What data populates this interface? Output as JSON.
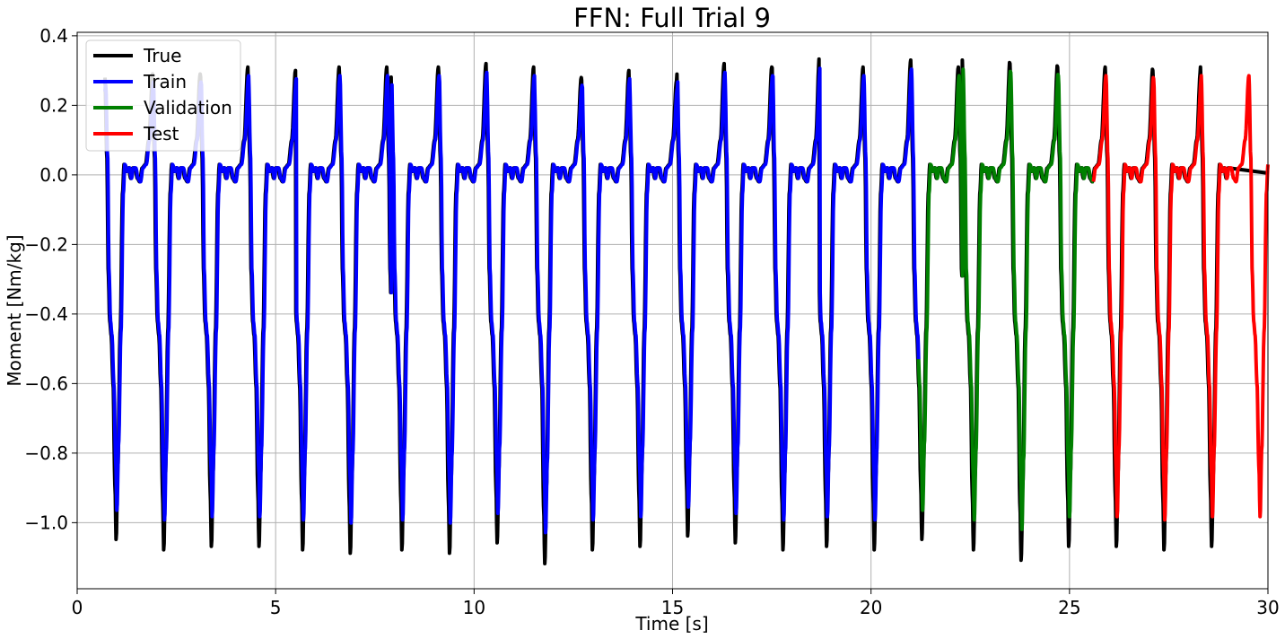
{
  "chart_data": {
    "type": "line",
    "title": "FFN: Full Trial 9",
    "xlabel": "Time [s]",
    "ylabel": "Moment [Nm/kg]",
    "xlim": [
      0,
      30
    ],
    "ylim": [
      -1.19,
      0.41
    ],
    "xticks": [
      0,
      5,
      10,
      15,
      20,
      25,
      30
    ],
    "yticks": [
      0.4,
      0.2,
      0.0,
      -0.2,
      -0.4,
      -0.6,
      -0.8,
      -1.0
    ],
    "ytick_labels": [
      "0.4",
      "0.2",
      "0.0",
      "−0.2",
      "−0.4",
      "−0.6",
      "−0.8",
      "−1.0"
    ],
    "grid": true,
    "legend_position": "upper-left",
    "colors": {
      "True": "#000000",
      "Train": "#0000ff",
      "Validation": "#008000",
      "Test": "#ff0000"
    },
    "legend": [
      "True",
      "Train",
      "Validation",
      "Test"
    ],
    "stride_period_s": 1.2,
    "series": [
      {
        "name": "True",
        "peaks": [
          {
            "t": 0.7,
            "max": 0.28,
            "min": -1.05
          },
          {
            "t": 1.9,
            "max": 0.29,
            "min": -1.08
          },
          {
            "t": 3.1,
            "max": 0.31,
            "min": -1.07
          },
          {
            "t": 4.3,
            "max": 0.3,
            "min": -1.07
          },
          {
            "t": 5.4,
            "max": 0.31,
            "min": -1.08
          },
          {
            "t": 6.6,
            "max": 0.31,
            "min": -1.09
          },
          {
            "t": 7.9,
            "max": 0.31,
            "min": -1.08
          },
          {
            "t": 9.1,
            "max": 0.32,
            "min": -1.09
          },
          {
            "t": 10.3,
            "max": 0.31,
            "min": -1.06
          },
          {
            "t": 11.5,
            "max": 0.28,
            "min": -1.12
          },
          {
            "t": 12.7,
            "max": 0.3,
            "min": -1.08
          },
          {
            "t": 13.9,
            "max": 0.27,
            "min": -1.07
          },
          {
            "t": 15.1,
            "max": 0.32,
            "min": -1.04
          },
          {
            "t": 16.3,
            "max": 0.31,
            "min": -1.06
          },
          {
            "t": 17.5,
            "max": 0.34,
            "min": -1.08
          },
          {
            "t": 18.6,
            "max": 0.31,
            "min": -1.07
          },
          {
            "t": 19.8,
            "max": 0.33,
            "min": -1.08
          },
          {
            "t": 21.0,
            "max": 0.31,
            "min": -1.05
          },
          {
            "t": 22.3,
            "max": 0.33,
            "min": -1.08
          },
          {
            "t": 23.5,
            "max": 0.32,
            "min": -1.11
          },
          {
            "t": 24.7,
            "max": 0.31,
            "min": -1.07
          },
          {
            "t": 25.9,
            "max": 0.31,
            "min": -1.07
          },
          {
            "t": 27.1,
            "max": 0.3,
            "min": -1.08
          },
          {
            "t": 28.3,
            "max": 0.31,
            "min": -1.07
          }
        ]
      },
      {
        "name": "Train",
        "t_range": [
          0.7,
          21.2
        ]
      },
      {
        "name": "Validation",
        "t_range": [
          21.2,
          25.6
        ]
      },
      {
        "name": "Test",
        "t_range": [
          25.6,
          30.0
        ]
      }
    ]
  }
}
